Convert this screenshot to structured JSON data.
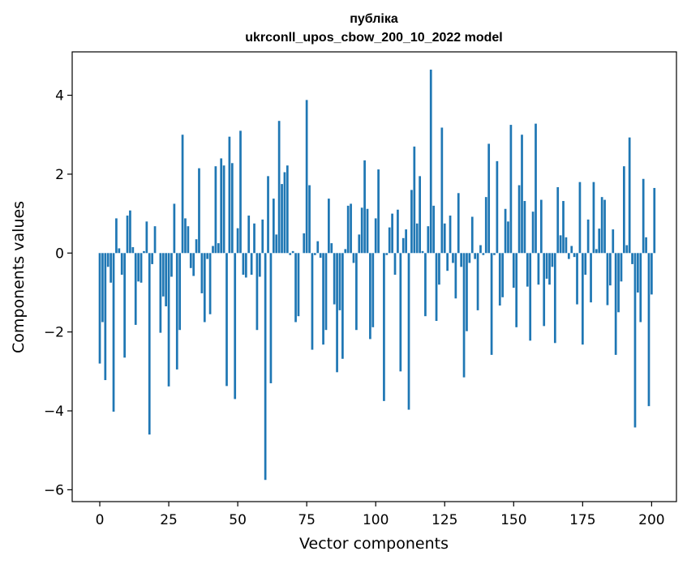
{
  "chart_data": {
    "type": "bar",
    "title_line1": "публіка",
    "title_line2": "ukrconll_upos_cbow_200_10_2022 model",
    "xlabel": "Vector components",
    "ylabel": "Components values",
    "xlim": [
      -10,
      209
    ],
    "ylim": [
      -6.3,
      5.1
    ],
    "xticks": [
      0,
      25,
      50,
      75,
      100,
      125,
      150,
      175,
      200
    ],
    "yticks": [
      -6,
      -4,
      -2,
      0,
      2,
      4
    ],
    "ytick_labels": [
      "−6",
      "−4",
      "−2",
      "0",
      "2",
      "4"
    ],
    "bar_color": "#1f77b4",
    "values": [
      -2.8,
      -1.75,
      -3.22,
      -0.35,
      -0.75,
      -4.02,
      0.88,
      0.12,
      -0.55,
      -2.65,
      0.95,
      1.08,
      0.15,
      -1.82,
      -0.72,
      -0.75,
      0.05,
      0.8,
      -4.6,
      -0.28,
      0.68,
      0.0,
      -2.02,
      -1.1,
      -1.35,
      -3.38,
      -0.6,
      1.25,
      -2.95,
      -1.95,
      3.0,
      0.88,
      0.68,
      -0.38,
      -0.58,
      0.35,
      2.15,
      -1.02,
      -1.75,
      -0.15,
      -1.55,
      0.18,
      2.2,
      0.25,
      2.4,
      2.22,
      -3.37,
      2.95,
      2.28,
      -3.7,
      0.63,
      3.1,
      -0.55,
      -0.62,
      0.95,
      -0.55,
      0.75,
      -1.95,
      -0.6,
      0.85,
      -5.75,
      1.95,
      -3.3,
      1.38,
      0.47,
      3.35,
      1.75,
      2.05,
      2.22,
      -0.05,
      0.05,
      -1.75,
      -1.6,
      0.0,
      0.5,
      3.88,
      1.72,
      -2.45,
      -0.05,
      0.3,
      -0.12,
      -2.32,
      -1.95,
      1.38,
      0.25,
      -1.3,
      -3.02,
      -1.45,
      -2.68,
      0.1,
      1.2,
      1.25,
      -0.25,
      -1.95,
      0.47,
      1.15,
      2.35,
      1.12,
      -2.18,
      -1.88,
      0.88,
      2.12,
      0.0,
      -3.75,
      -0.05,
      0.65,
      1.0,
      -0.55,
      1.1,
      -3.0,
      0.38,
      0.6,
      -3.97,
      1.6,
      2.7,
      0.75,
      1.95,
      0.05,
      -1.6,
      0.68,
      4.65,
      1.2,
      -1.72,
      -0.8,
      3.18,
      0.75,
      -0.45,
      0.95,
      -0.25,
      -1.15,
      1.52,
      -0.35,
      -3.15,
      -1.98,
      -0.25,
      0.92,
      -0.15,
      -1.45,
      0.2,
      -0.05,
      1.42,
      2.77,
      -2.58,
      -0.05,
      2.33,
      -1.33,
      -1.12,
      1.12,
      0.8,
      3.25,
      -0.88,
      -1.88,
      1.72,
      3.0,
      1.32,
      -0.85,
      -2.22,
      1.05,
      3.28,
      -0.8,
      1.35,
      -1.85,
      -0.65,
      -0.8,
      -0.35,
      -2.28,
      1.67,
      0.45,
      1.32,
      0.4,
      -0.15,
      0.18,
      -0.1,
      -1.3,
      1.8,
      -2.32,
      -0.55,
      0.85,
      -1.25,
      1.8,
      0.1,
      0.62,
      1.42,
      1.35,
      -1.32,
      -0.82,
      0.6,
      -2.58,
      -1.5,
      -0.72,
      2.2,
      0.2,
      2.93,
      -0.28,
      -4.42,
      -1.0,
      -1.75,
      1.88,
      0.4,
      -3.88,
      -1.05,
      1.65
    ]
  }
}
